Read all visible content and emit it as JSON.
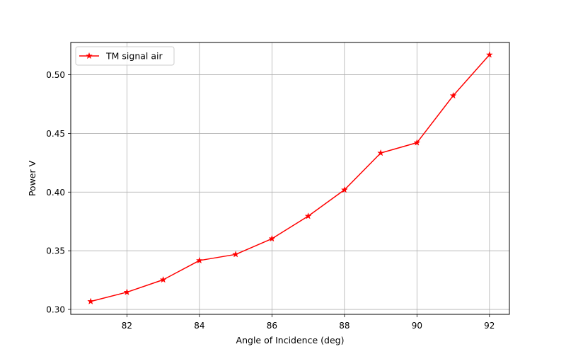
{
  "chart_data": {
    "type": "line",
    "title": "",
    "xlabel": "Angle of Incidence (deg)",
    "ylabel": "Power V",
    "xlim": [
      80.45,
      92.55
    ],
    "ylim": [
      0.2958,
      0.5275
    ],
    "xticks": [
      82,
      84,
      86,
      88,
      90,
      92
    ],
    "yticks": [
      0.3,
      0.35,
      0.4,
      0.45,
      0.5
    ],
    "xtick_labels": [
      "82",
      "84",
      "86",
      "88",
      "90",
      "92"
    ],
    "ytick_labels": [
      "0.30",
      "0.35",
      "0.40",
      "0.45",
      "0.50"
    ],
    "grid": true,
    "legend_position": "upper-left",
    "series": [
      {
        "name": "TM signal air",
        "color": "#ff0000",
        "marker": "star",
        "x": [
          81,
          82,
          83,
          84,
          85,
          86,
          87,
          88,
          89,
          90,
          91,
          92
        ],
        "y": [
          0.3068,
          0.3147,
          0.3253,
          0.3417,
          0.3469,
          0.3603,
          0.3795,
          0.4019,
          0.4333,
          0.4421,
          0.4822,
          0.517
        ]
      }
    ]
  }
}
